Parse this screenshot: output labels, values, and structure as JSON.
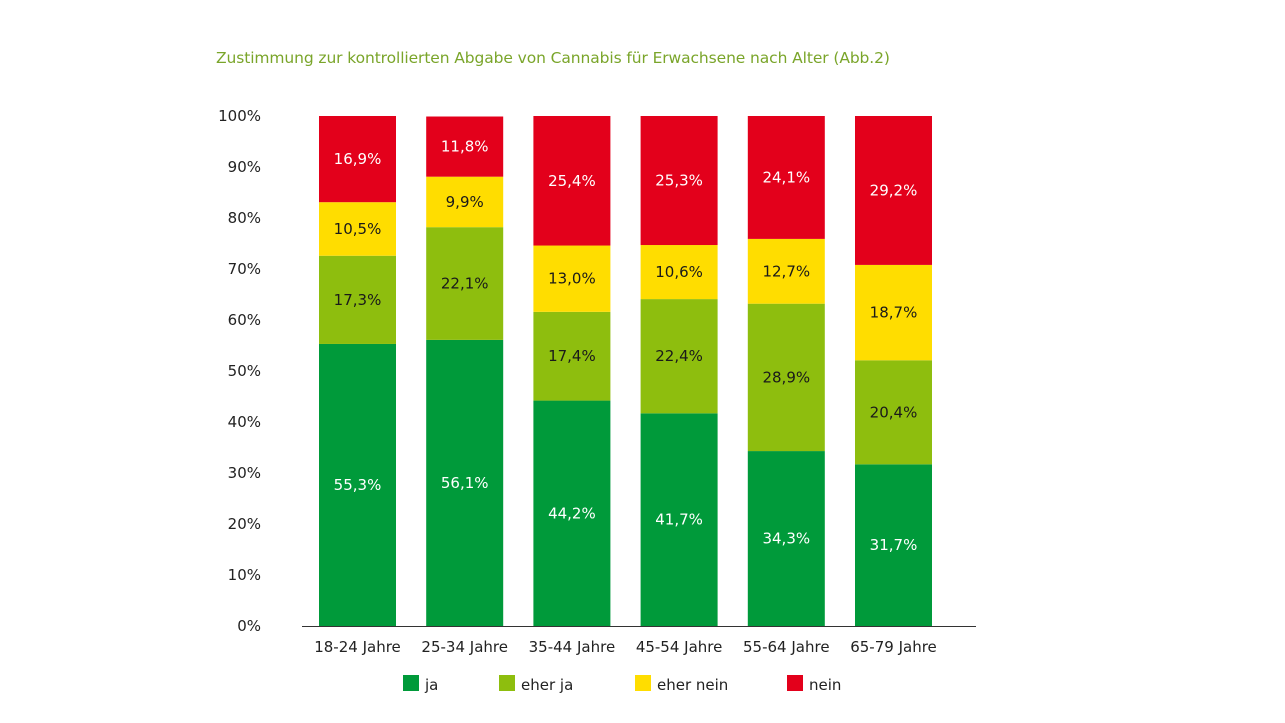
{
  "chart_data": {
    "type": "bar",
    "stacked": true,
    "title": "Zustimmung zur kontrollierten Abgabe von Cannabis für Erwachsene nach Alter (Abb.2)",
    "xlabel": "",
    "ylabel": "",
    "ylim": [
      0,
      100
    ],
    "yticks": [
      "0%",
      "10%",
      "20%",
      "30%",
      "40%",
      "50%",
      "60%",
      "70%",
      "80%",
      "90%",
      "100%"
    ],
    "categories": [
      "18-24 Jahre",
      "25-34 Jahre",
      "35-44 Jahre",
      "45-54 Jahre",
      "55-64 Jahre",
      "65-79 Jahre"
    ],
    "series": [
      {
        "name": "ja",
        "color": "#009a3a",
        "label_color": "#ffffff",
        "values": [
          55.3,
          56.1,
          44.2,
          41.7,
          34.3,
          31.7
        ],
        "labels": [
          "55,3%",
          "56,1%",
          "44,2%",
          "41,7%",
          "34,3%",
          "31,7%"
        ]
      },
      {
        "name": "eher ja",
        "color": "#8ebe0e",
        "label_color": "#1a1a1a",
        "values": [
          17.3,
          22.1,
          17.4,
          22.4,
          28.9,
          20.4
        ],
        "labels": [
          "17,3%",
          "22,1%",
          "17,4%",
          "22,4%",
          "28,9%",
          "20,4%"
        ]
      },
      {
        "name": "eher nein",
        "color": "#ffdd00",
        "label_color": "#1a1a1a",
        "values": [
          10.5,
          9.9,
          13.0,
          10.6,
          12.7,
          18.7
        ],
        "labels": [
          "10,5%",
          "9,9%",
          "13,0%",
          "10,6%",
          "12,7%",
          "18,7%"
        ]
      },
      {
        "name": "nein",
        "color": "#e3001b",
        "label_color": "#ffffff",
        "values": [
          16.9,
          11.8,
          25.4,
          25.3,
          24.1,
          29.2
        ],
        "labels": [
          "16,9%",
          "11,8%",
          "25,4%",
          "25,3%",
          "24,1%",
          "29,2%"
        ]
      }
    ],
    "legend_position": "bottom",
    "grid": false
  }
}
